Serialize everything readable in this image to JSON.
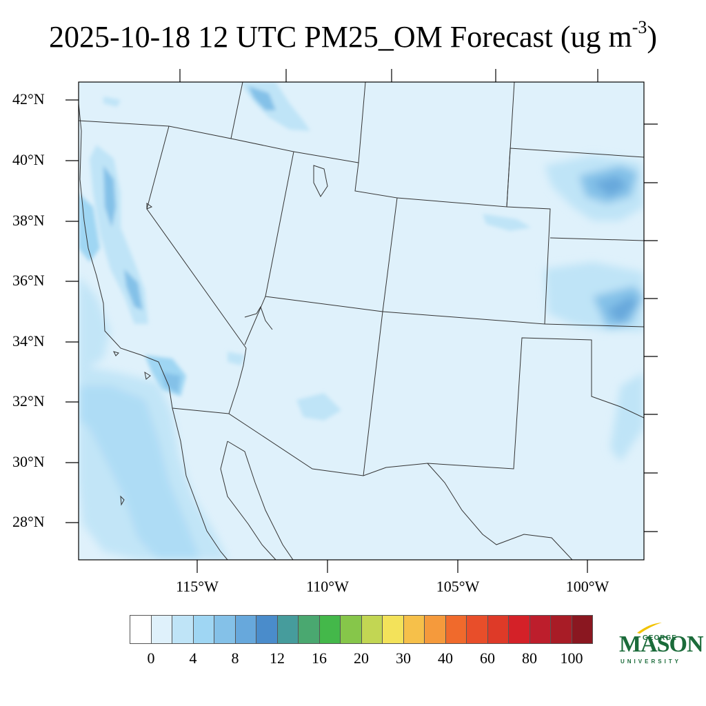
{
  "title": {
    "main": "2025-10-18 12 UTC PM25_OM Forecast (ug m",
    "superscript": "-3",
    "close": ")"
  },
  "map": {
    "fill_color": "#dff1fb",
    "border_color": "#333333",
    "lat_labels": [
      "42°N",
      "40°N",
      "38°N",
      "36°N",
      "34°N",
      "32°N",
      "30°N",
      "28°N"
    ],
    "lon_labels": [
      "115°W",
      "110°W",
      "105°W",
      "100°W"
    ]
  },
  "colorbar": {
    "colors": [
      "#ffffff",
      "#dff1fb",
      "#bfe4f7",
      "#9fd6f3",
      "#84c1e8",
      "#67a8dc",
      "#4a8ccb",
      "#469c9c",
      "#4aa870",
      "#44b84a",
      "#86c64a",
      "#c2d653",
      "#f3e25a",
      "#f6c04a",
      "#f59a3c",
      "#f06a2c",
      "#e84e2a",
      "#de3a28",
      "#d42128",
      "#bd1e2c",
      "#a81c26",
      "#8a1720"
    ],
    "labels": [
      "0",
      "4",
      "8",
      "12",
      "16",
      "20",
      "30",
      "40",
      "60",
      "80",
      "100"
    ]
  },
  "logo": {
    "george": "GEORGE",
    "mason": "MASON",
    "university": "UNIVERSITY",
    "brand_color": "#1b6b3a",
    "accent_color": "#f2c300"
  }
}
